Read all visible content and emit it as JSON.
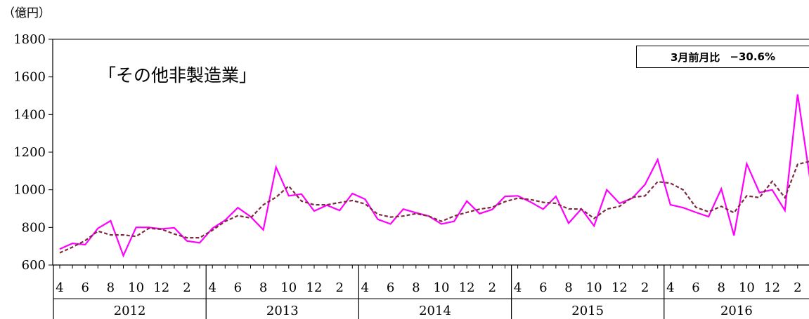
{
  "unit_label": "（億円）",
  "chart_title": "「その他非製造業」",
  "badge": {
    "label": "3月前月比",
    "value": "−30.6%"
  },
  "colors": {
    "actual": "#ff00ff",
    "trend": "#7b2b3e",
    "axis": "#000000"
  },
  "chart_data": {
    "type": "line",
    "title": "「その他非製造業」",
    "xlabel": "",
    "ylabel": "（億円）",
    "ylim": [
      600,
      1800
    ],
    "yticks": [
      600,
      800,
      1000,
      1200,
      1400,
      1600,
      1800
    ],
    "grid": false,
    "month_tick_labels": [
      "4",
      "6",
      "8",
      "10",
      "12",
      "2"
    ],
    "years": [
      "2012",
      "2013",
      "2014",
      "2015",
      "2016"
    ],
    "x": [
      "2012-04",
      "2012-05",
      "2012-06",
      "2012-07",
      "2012-08",
      "2012-09",
      "2012-10",
      "2012-11",
      "2012-12",
      "2013-01",
      "2013-02",
      "2013-03",
      "2013-04",
      "2013-05",
      "2013-06",
      "2013-07",
      "2013-08",
      "2013-09",
      "2013-10",
      "2013-11",
      "2013-12",
      "2014-01",
      "2014-02",
      "2014-03",
      "2014-04",
      "2014-05",
      "2014-06",
      "2014-07",
      "2014-08",
      "2014-09",
      "2014-10",
      "2014-11",
      "2014-12",
      "2015-01",
      "2015-02",
      "2015-03",
      "2015-04",
      "2015-05",
      "2015-06",
      "2015-07",
      "2015-08",
      "2015-09",
      "2015-10",
      "2015-11",
      "2015-12",
      "2016-01",
      "2016-02",
      "2016-03",
      "2016-04",
      "2016-05",
      "2016-06",
      "2016-07",
      "2016-08",
      "2016-09",
      "2016-10",
      "2016-11",
      "2016-12",
      "2017-01",
      "2017-02",
      "2017-03"
    ],
    "series": [
      {
        "style": "solid",
        "values": [
          685,
          715,
          708,
          795,
          835,
          650,
          800,
          800,
          792,
          798,
          728,
          718,
          795,
          838,
          905,
          857,
          787,
          1120,
          968,
          977,
          887,
          918,
          890,
          980,
          950,
          843,
          818,
          897,
          878,
          860,
          818,
          832,
          940,
          873,
          895,
          965,
          968,
          935,
          897,
          965,
          822,
          898,
          808,
          1000,
          928,
          955,
          1027,
          1160,
          920,
          905,
          880,
          857,
          1005,
          757,
          1138,
          985,
          1000,
          890,
          1507,
          1045
        ]
      },
      {
        "style": "dashed",
        "values": [
          665,
          695,
          730,
          780,
          760,
          760,
          752,
          795,
          790,
          765,
          745,
          745,
          785,
          832,
          862,
          850,
          920,
          960,
          1020,
          940,
          920,
          920,
          932,
          943,
          925,
          870,
          855,
          860,
          873,
          860,
          832,
          860,
          880,
          897,
          907,
          937,
          955,
          948,
          933,
          928,
          898,
          897,
          848,
          897,
          912,
          960,
          967,
          1043,
          1035,
          1000,
          907,
          883,
          912,
          878,
          968,
          958,
          1045,
          958,
          1135,
          1152
        ]
      }
    ]
  }
}
